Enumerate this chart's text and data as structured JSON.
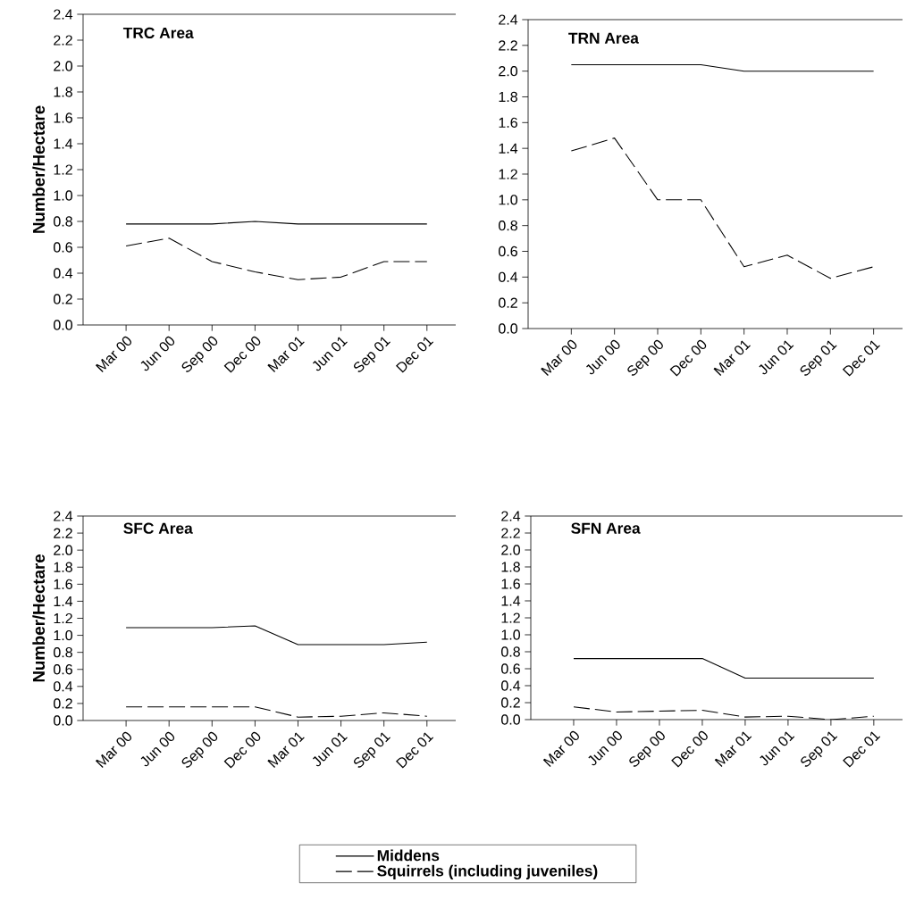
{
  "chart_data": [
    {
      "type": "line",
      "title": "TRC Area",
      "ylabel": "Number/Hectare",
      "categories": [
        "Mar 00",
        "Jun 00",
        "Sep 00",
        "Dec 00",
        "Mar 01",
        "Jun 01",
        "Sep 01",
        "Dec 01"
      ],
      "ylim": [
        0,
        2.4
      ],
      "yticks": [
        {
          "value": 0,
          "label": "0.0"
        },
        {
          "value": 0.2,
          "label": "0.2"
        },
        {
          "value": 0.4,
          "label": "0.4"
        },
        {
          "value": 0.6,
          "label": "0.6"
        },
        {
          "value": 0.8,
          "label": "0.8"
        },
        {
          "value": 1.0,
          "label": "1.0"
        },
        {
          "value": 1.2,
          "label": "1.2"
        },
        {
          "value": 1.4,
          "label": "1.4"
        },
        {
          "value": 1.6,
          "label": "1.6"
        },
        {
          "value": 1.8,
          "label": "1.8"
        },
        {
          "value": 2.0,
          "label": "2.0"
        },
        {
          "value": 2.2,
          "label": "2.2"
        },
        {
          "value": 2.4,
          "label": "2.4"
        }
      ],
      "series": [
        {
          "color": "#000000",
          "line_style": "solid",
          "values": [
            0.78,
            0.78,
            0.78,
            0.8,
            0.78,
            0.78,
            0.78,
            0.78
          ]
        },
        {
          "color": "#000000",
          "line_style": "dashed",
          "values": [
            0.61,
            0.67,
            0.49,
            0.41,
            0.35,
            0.37,
            0.49,
            0.49
          ]
        }
      ]
    },
    {
      "type": "line",
      "title": "TRN Area",
      "categories": [
        "Mar 00",
        "Jun 00",
        "Sep 00",
        "Dec 00",
        "Mar 01",
        "Jun 01",
        "Sep 01",
        "Dec 01"
      ],
      "ylim": [
        0,
        2.4
      ],
      "yticks": [
        {
          "value": 0,
          "label": "0.0"
        },
        {
          "value": 0.2,
          "label": "0.2"
        },
        {
          "value": 0.4,
          "label": "0.4"
        },
        {
          "value": 0.6,
          "label": "0.6"
        },
        {
          "value": 0.8,
          "label": "0.8"
        },
        {
          "value": 1.0,
          "label": "1.0"
        },
        {
          "value": 1.2,
          "label": "1.2"
        },
        {
          "value": 1.4,
          "label": "1.4"
        },
        {
          "value": 1.6,
          "label": "1.6"
        },
        {
          "value": 1.8,
          "label": "1.8"
        },
        {
          "value": 2.0,
          "label": "2.0"
        },
        {
          "value": 2.2,
          "label": "2.2"
        },
        {
          "value": 2.4,
          "label": "2.4"
        }
      ],
      "series": [
        {
          "color": "#000000",
          "line_style": "solid",
          "values": [
            2.05,
            2.05,
            2.05,
            2.05,
            2.0,
            2.0,
            2.0,
            2.0
          ]
        },
        {
          "color": "#000000",
          "line_style": "dashed",
          "values": [
            1.38,
            1.48,
            1.0,
            1.0,
            0.48,
            0.57,
            0.39,
            0.48
          ]
        }
      ]
    },
    {
      "type": "line",
      "title": "SFC Area",
      "ylabel": "Number/Hectare",
      "categories": [
        "Mar 00",
        "Jun 00",
        "Sep 00",
        "Dec 00",
        "Mar 01",
        "Jun 01",
        "Sep 01",
        "Dec 01"
      ],
      "ylim": [
        0,
        2.4
      ],
      "yticks": [
        {
          "value": 0,
          "label": "0.0"
        },
        {
          "value": 0.2,
          "label": "0.2"
        },
        {
          "value": 0.4,
          "label": "0.4"
        },
        {
          "value": 0.6,
          "label": "0.6"
        },
        {
          "value": 0.8,
          "label": "0.8"
        },
        {
          "value": 1.0,
          "label": "1.0"
        },
        {
          "value": 1.2,
          "label": "1.2"
        },
        {
          "value": 1.4,
          "label": "1.4"
        },
        {
          "value": 1.6,
          "label": "1.6"
        },
        {
          "value": 1.8,
          "label": "1.8"
        },
        {
          "value": 2.0,
          "label": "2.0"
        },
        {
          "value": 2.2,
          "label": "2.2"
        },
        {
          "value": 2.4,
          "label": "2.4"
        }
      ],
      "series": [
        {
          "color": "#000000",
          "line_style": "solid",
          "values": [
            1.09,
            1.09,
            1.09,
            1.11,
            0.89,
            0.89,
            0.89,
            0.92
          ]
        },
        {
          "color": "#000000",
          "line_style": "dashed",
          "values": [
            0.16,
            0.16,
            0.16,
            0.16,
            0.04,
            0.05,
            0.09,
            0.05
          ]
        }
      ]
    },
    {
      "type": "line",
      "title": "SFN Area",
      "categories": [
        "Mar 00",
        "Jun 00",
        "Sep 00",
        "Dec 00",
        "Mar 01",
        "Jun 01",
        "Sep 01",
        "Dec 01"
      ],
      "ylim": [
        0,
        2.4
      ],
      "yticks": [
        {
          "value": 0,
          "label": "0.0"
        },
        {
          "value": 0.2,
          "label": "0.2"
        },
        {
          "value": 0.4,
          "label": "0.4"
        },
        {
          "value": 0.6,
          "label": "0.6"
        },
        {
          "value": 0.8,
          "label": "0.8"
        },
        {
          "value": 1.0,
          "label": "1.0"
        },
        {
          "value": 1.2,
          "label": "1.2"
        },
        {
          "value": 1.4,
          "label": "1.4"
        },
        {
          "value": 1.6,
          "label": "1.6"
        },
        {
          "value": 1.8,
          "label": "1.8"
        },
        {
          "value": 2.0,
          "label": "2.0"
        },
        {
          "value": 2.2,
          "label": "2.2"
        },
        {
          "value": 2.4,
          "label": "2.4"
        }
      ],
      "legend": "bottom",
      "series": [
        {
          "name": "Middens",
          "color": "#000000",
          "line_style": "solid",
          "values": [
            0.72,
            0.72,
            0.72,
            0.72,
            0.49,
            0.49,
            0.49,
            0.49
          ]
        },
        {
          "name": "Squirrels (including juveniles)",
          "color": "#000000",
          "line_style": "dashed",
          "values": [
            0.15,
            0.09,
            0.1,
            0.11,
            0.03,
            0.04,
            0.0,
            0.04
          ]
        }
      ]
    }
  ]
}
